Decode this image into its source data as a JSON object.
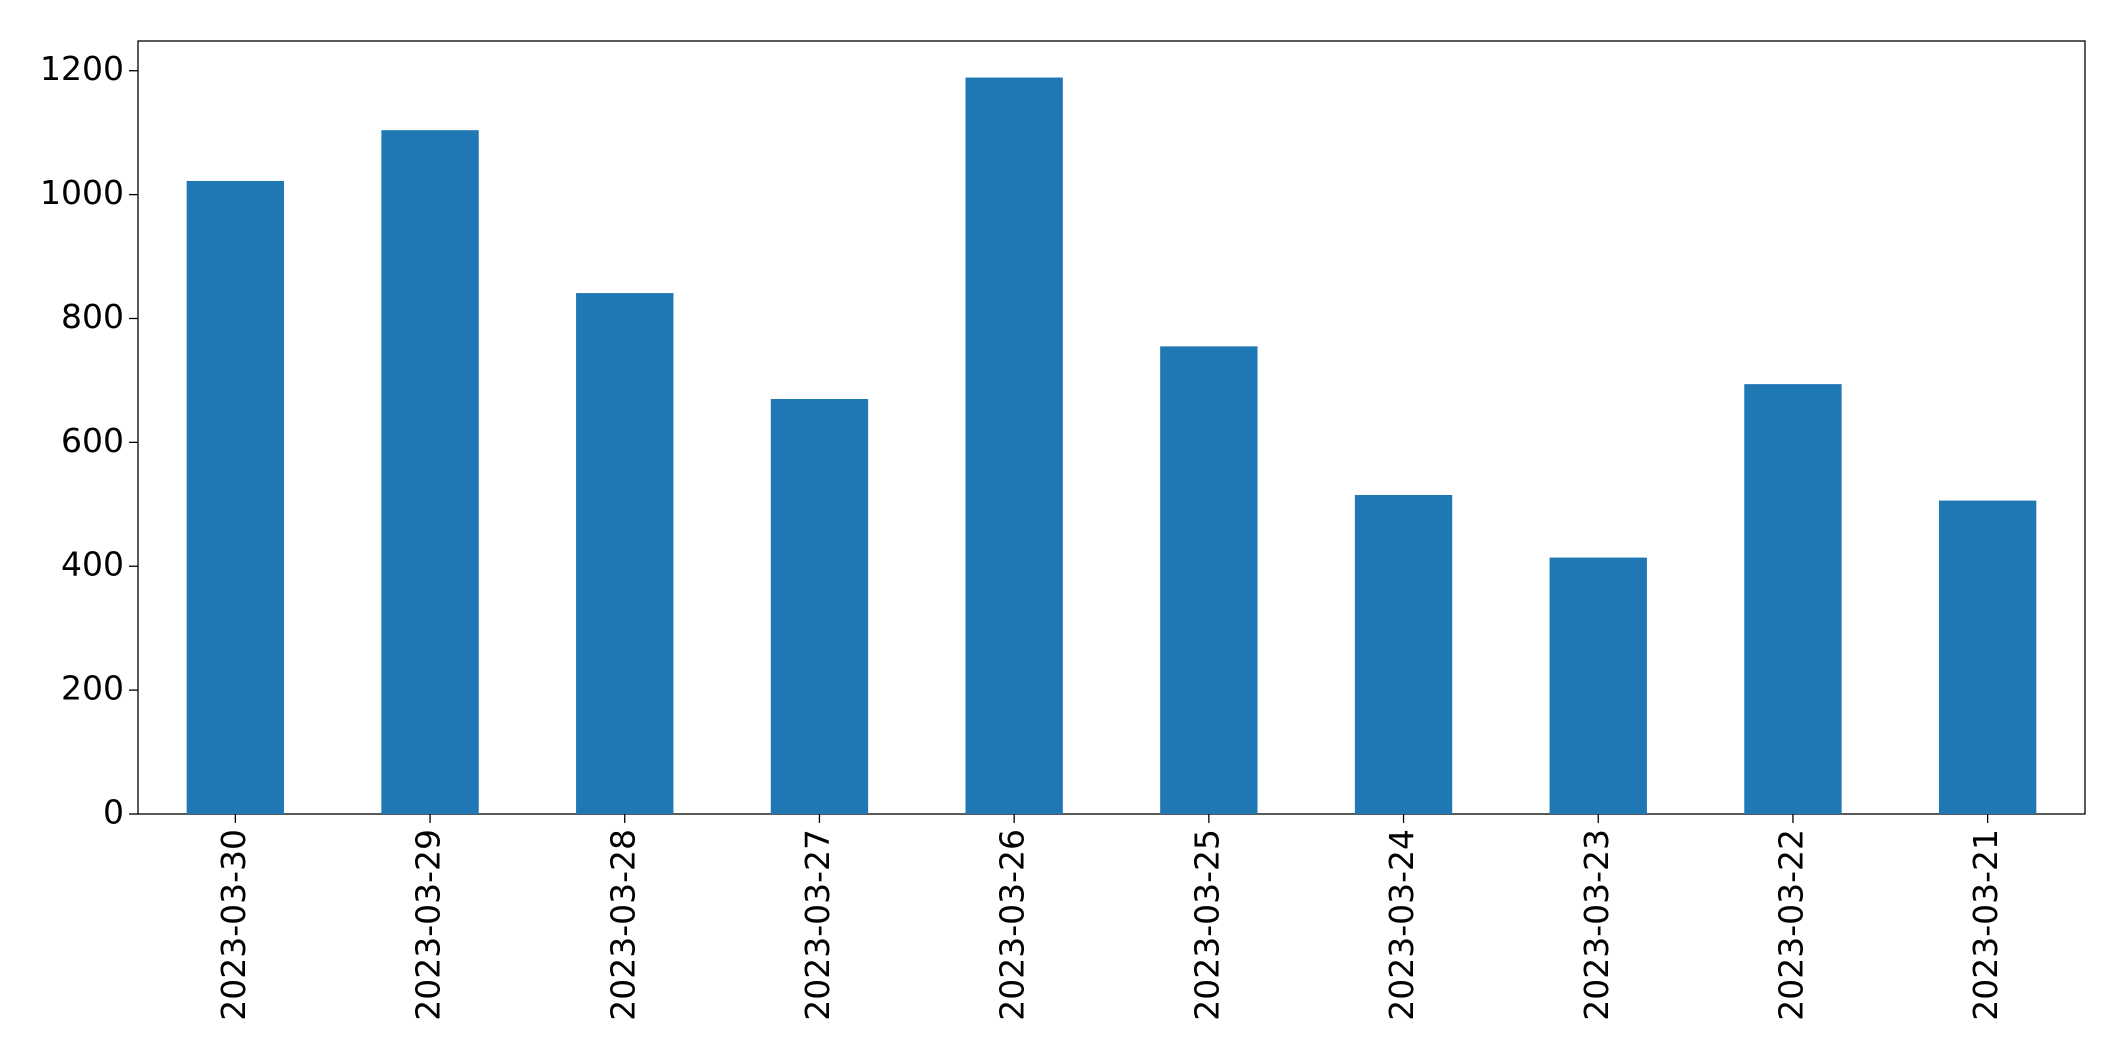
{
  "chart_data": {
    "type": "bar",
    "categories": [
      "2023-03-30",
      "2023-03-29",
      "2023-03-28",
      "2023-03-27",
      "2023-03-26",
      "2023-03-25",
      "2023-03-24",
      "2023-03-23",
      "2023-03-22",
      "2023-03-21"
    ],
    "values": [
      1022,
      1104,
      841,
      670,
      1189,
      755,
      515,
      414,
      694,
      506
    ],
    "color": "#1f77b4",
    "ylim": [
      0,
      1248
    ],
    "yticks": [
      0,
      200,
      400,
      600,
      800,
      1000,
      1200
    ],
    "grid": false
  }
}
